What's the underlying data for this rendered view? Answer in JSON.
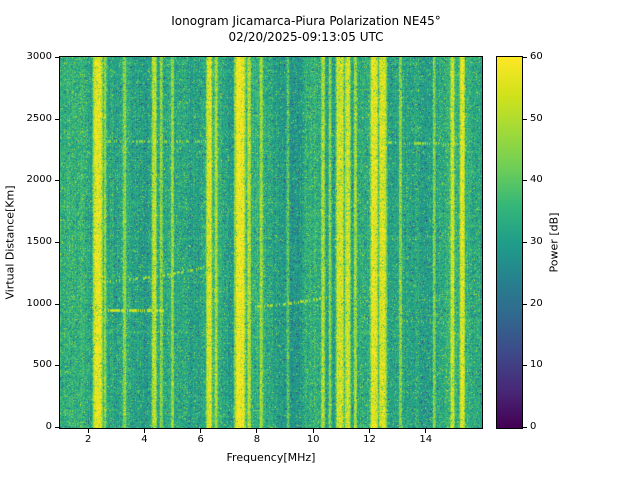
{
  "chart_data": {
    "type": "heatmap",
    "title": "Ionogram Jicamarca-Piura Polarization NE45°",
    "subtitle": "02/20/2025-09:13:05 UTC",
    "xlabel": "Frequency[MHz]",
    "ylabel": "Virtual Distance[Km]",
    "x_range": [
      1.0,
      16.0
    ],
    "x_ticks": [
      2,
      4,
      6,
      8,
      10,
      12,
      14
    ],
    "y_range": [
      0,
      3000
    ],
    "y_ticks": [
      0,
      500,
      1000,
      1500,
      2000,
      2500,
      3000
    ],
    "colorbar": {
      "label": "Power [dB]",
      "range": [
        0,
        60
      ],
      "ticks": [
        0,
        10,
        20,
        30,
        40,
        50,
        60
      ],
      "colormap": "viridis"
    },
    "noise_floor_db": 33,
    "rfi_lines_mhz": [
      {
        "f": 2.35,
        "w": 0.1,
        "p": 59
      },
      {
        "f": 2.6,
        "w": 0.03,
        "p": 48
      },
      {
        "f": 3.3,
        "w": 0.03,
        "p": 46
      },
      {
        "f": 4.35,
        "w": 0.05,
        "p": 53
      },
      {
        "f": 4.6,
        "w": 0.03,
        "p": 47
      },
      {
        "f": 5.0,
        "w": 0.03,
        "p": 46
      },
      {
        "f": 6.3,
        "w": 0.06,
        "p": 54
      },
      {
        "f": 6.55,
        "w": 0.03,
        "p": 47
      },
      {
        "f": 7.4,
        "w": 0.11,
        "p": 59
      },
      {
        "f": 7.72,
        "w": 0.04,
        "p": 51
      },
      {
        "f": 8.15,
        "w": 0.03,
        "p": 45
      },
      {
        "f": 9.1,
        "w": 0.03,
        "p": 46
      },
      {
        "f": 10.35,
        "w": 0.04,
        "p": 50
      },
      {
        "f": 10.6,
        "w": 0.03,
        "p": 47
      },
      {
        "f": 10.95,
        "w": 0.08,
        "p": 58
      },
      {
        "f": 11.22,
        "w": 0.06,
        "p": 56
      },
      {
        "f": 11.5,
        "w": 0.03,
        "p": 48
      },
      {
        "f": 12.17,
        "w": 0.08,
        "p": 58
      },
      {
        "f": 12.47,
        "w": 0.08,
        "p": 57
      },
      {
        "f": 13.1,
        "w": 0.03,
        "p": 46
      },
      {
        "f": 14.3,
        "w": 0.03,
        "p": 45
      },
      {
        "f": 14.95,
        "w": 0.04,
        "p": 51
      },
      {
        "f": 15.3,
        "w": 0.05,
        "p": 54
      }
    ],
    "dark_bands_mhz": [
      {
        "f1": 2.9,
        "f2": 3.15,
        "delta_db": -2
      },
      {
        "f1": 6.75,
        "f2": 7.2,
        "delta_db": -3
      },
      {
        "f1": 8.25,
        "f2": 9.6,
        "delta_db": -3
      },
      {
        "f1": 13.25,
        "f2": 14.25,
        "delta_db": -3
      }
    ],
    "echo_traces": [
      {
        "f1": 2.45,
        "f2": 4.65,
        "alt1": 950,
        "alt2": 945,
        "p": 55,
        "density": 0.65,
        "curve": false
      },
      {
        "f1": 2.5,
        "f2": 6.4,
        "alt1": 1185,
        "alt2": 1310,
        "p": 49,
        "density": 0.5,
        "curve": true
      },
      {
        "f1": 7.5,
        "f2": 10.6,
        "alt1": 975,
        "alt2": 1060,
        "p": 51,
        "density": 0.5,
        "curve": true
      },
      {
        "f1": 2.5,
        "f2": 6.6,
        "alt1": 2320,
        "alt2": 2315,
        "p": 47,
        "density": 0.45,
        "curve": false
      },
      {
        "f1": 12.35,
        "f2": 15.1,
        "alt1": 2310,
        "alt2": 2295,
        "p": 49,
        "density": 0.5,
        "curve": false
      },
      {
        "f1": 13.0,
        "f2": 14.9,
        "alt1": 860,
        "alt2": 850,
        "p": 45,
        "density": 0.35,
        "curve": false
      }
    ]
  }
}
